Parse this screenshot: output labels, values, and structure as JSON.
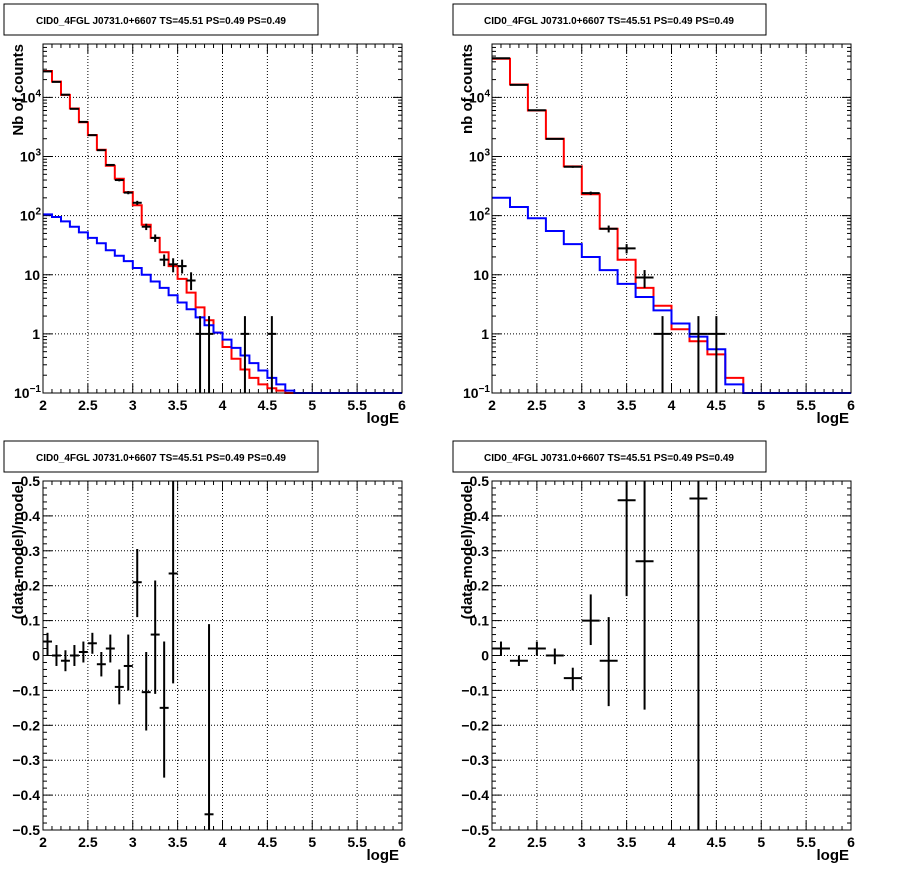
{
  "chart_data": [
    {
      "id": "top-left",
      "type": "step-histogram",
      "title": "CID0_4FGL J0731.0+6607 TS=45.51 PS=0.49 PS=0.49",
      "xlabel": "logE",
      "ylabel": "Nb of counts",
      "scale_y": "log",
      "xlim": [
        2,
        6
      ],
      "ylim": [
        0.1,
        80000
      ],
      "grid": true,
      "x_ticks": [
        "2",
        "2.5",
        "3",
        "3.5",
        "4",
        "4.5",
        "5",
        "5.5",
        "6"
      ],
      "y_ticks": [
        {
          "v": 0.1,
          "label": "10",
          "sup": "−1"
        },
        {
          "v": 1,
          "label": "1",
          "sup": ""
        },
        {
          "v": 10,
          "label": "10",
          "sup": ""
        },
        {
          "v": 100,
          "label": "10",
          "sup": "2"
        },
        {
          "v": 1000,
          "label": "10",
          "sup": "3"
        },
        {
          "v": 10000,
          "label": "10",
          "sup": "4"
        }
      ],
      "bin_edges": [
        2.0,
        2.1,
        2.2,
        2.3,
        2.4,
        2.5,
        2.6,
        2.7,
        2.8,
        2.9,
        3.0,
        3.1,
        3.2,
        3.3,
        3.4,
        3.5,
        3.6,
        3.7,
        3.8,
        3.9,
        4.0,
        4.1,
        4.2,
        4.3,
        4.4,
        4.5,
        4.6,
        4.7,
        4.8,
        4.9,
        5.0,
        5.1,
        5.2,
        5.3,
        5.4,
        5.5,
        5.6,
        5.7,
        5.8,
        5.9,
        6.0
      ],
      "series": [
        {
          "kind": "step",
          "color": "#ff0000",
          "values": [
            28000,
            18500,
            11000,
            6500,
            3800,
            2300,
            1300,
            700,
            420,
            250,
            150,
            70,
            42,
            24,
            14,
            8.5,
            5,
            2.8,
            1.7,
            1.05,
            0.6,
            0.38,
            0.25,
            0.18,
            0.14,
            0.12,
            0.11,
            0.1,
            0.1,
            0.1,
            0.1,
            0.1,
            0.1,
            0.1,
            0.1,
            0.1,
            0.1,
            0.1,
            0.1,
            0.1
          ]
        },
        {
          "kind": "step",
          "color": "#0000ff",
          "values": [
            105,
            95,
            80,
            65,
            52,
            42,
            34,
            26,
            21,
            17,
            13,
            10,
            7.7,
            6,
            4.5,
            3.4,
            2.6,
            1.9,
            1.4,
            1.05,
            0.8,
            0.58,
            0.43,
            0.32,
            0.24,
            0.18,
            0.14,
            0.11,
            0.1,
            0.1,
            0.1,
            0.1,
            0.1,
            0.1,
            0.1,
            0.1,
            0.1,
            0.1,
            0.1,
            0.1
          ]
        },
        {
          "kind": "errorbars",
          "color": "#000000",
          "points": [
            {
              "x": 2.05,
              "y": 27500,
              "ylo": 27300,
              "yhi": 27700
            },
            {
              "x": 2.15,
              "y": 18300,
              "ylo": 18150,
              "yhi": 18450
            },
            {
              "x": 2.25,
              "y": 11100,
              "ylo": 11000,
              "yhi": 11200
            },
            {
              "x": 2.35,
              "y": 6400,
              "ylo": 6320,
              "yhi": 6480
            },
            {
              "x": 2.45,
              "y": 3850,
              "ylo": 3790,
              "yhi": 3910
            },
            {
              "x": 2.55,
              "y": 2300,
              "ylo": 2250,
              "yhi": 2350
            },
            {
              "x": 2.65,
              "y": 1280,
              "ylo": 1245,
              "yhi": 1315
            },
            {
              "x": 2.75,
              "y": 720,
              "ylo": 695,
              "yhi": 745
            },
            {
              "x": 2.85,
              "y": 400,
              "ylo": 380,
              "yhi": 420
            },
            {
              "x": 2.95,
              "y": 245,
              "ylo": 230,
              "yhi": 260
            },
            {
              "x": 3.05,
              "y": 165,
              "ylo": 152,
              "yhi": 178
            },
            {
              "x": 3.15,
              "y": 65,
              "ylo": 57,
              "yhi": 73
            },
            {
              "x": 3.25,
              "y": 42,
              "ylo": 36,
              "yhi": 48
            },
            {
              "x": 3.35,
              "y": 18,
              "ylo": 14,
              "yhi": 22
            },
            {
              "x": 3.45,
              "y": 15,
              "ylo": 11,
              "yhi": 19
            },
            {
              "x": 3.55,
              "y": 14,
              "ylo": 10.5,
              "yhi": 18
            },
            {
              "x": 3.65,
              "y": 8,
              "ylo": 5.5,
              "yhi": 11
            },
            {
              "x": 3.75,
              "y": 1,
              "ylo": 0.1,
              "yhi": 2
            },
            {
              "x": 3.85,
              "y": 1,
              "ylo": 0.1,
              "yhi": 2
            },
            {
              "x": 4.25,
              "y": 1,
              "ylo": 0.1,
              "yhi": 2
            },
            {
              "x": 4.55,
              "y": 1,
              "ylo": 0.1,
              "yhi": 2
            }
          ]
        }
      ]
    },
    {
      "id": "top-right",
      "type": "step-histogram",
      "title": "CID0_4FGL J0731.0+6607 TS=45.51 PS=0.49 PS=0.49",
      "xlabel": "logE",
      "ylabel": "nb of counts",
      "scale_y": "log",
      "xlim": [
        2,
        6
      ],
      "ylim": [
        0.1,
        80000
      ],
      "grid": true,
      "x_ticks": [
        "2",
        "2.5",
        "3",
        "3.5",
        "4",
        "4.5",
        "5",
        "5.5",
        "6"
      ],
      "y_ticks": [
        {
          "v": 0.1,
          "label": "10",
          "sup": "−1"
        },
        {
          "v": 1,
          "label": "1",
          "sup": ""
        },
        {
          "v": 10,
          "label": "10",
          "sup": ""
        },
        {
          "v": 100,
          "label": "10",
          "sup": "2"
        },
        {
          "v": 1000,
          "label": "10",
          "sup": "3"
        },
        {
          "v": 10000,
          "label": "10",
          "sup": "4"
        }
      ],
      "bin_edges": [
        2.0,
        2.2,
        2.4,
        2.6,
        2.8,
        3.0,
        3.2,
        3.4,
        3.6,
        3.8,
        4.0,
        4.2,
        4.4,
        4.6,
        4.8,
        5.0,
        5.2,
        5.4,
        5.6,
        5.8,
        6.0
      ],
      "series": [
        {
          "kind": "step",
          "color": "#ff0000",
          "values": [
            45000,
            16500,
            6000,
            2000,
            680,
            230,
            60,
            18,
            6,
            3,
            1.2,
            0.75,
            0.45,
            0.18,
            0.1,
            0.1,
            0.1,
            0.1,
            0.1,
            0.1
          ]
        },
        {
          "kind": "step",
          "color": "#0000ff",
          "values": [
            200,
            140,
            90,
            55,
            33,
            20,
            12,
            7,
            4.2,
            2.5,
            1.5,
            0.9,
            0.55,
            0.14,
            0.1,
            0.1,
            0.1,
            0.1,
            0.1,
            0.1
          ]
        },
        {
          "kind": "errorbars",
          "color": "#000000",
          "points": [
            {
              "x": 2.1,
              "y": 46000,
              "ylo": 45700,
              "yhi": 46300
            },
            {
              "x": 2.3,
              "y": 16300,
              "ylo": 16150,
              "yhi": 16450
            },
            {
              "x": 2.5,
              "y": 6050,
              "ylo": 5970,
              "yhi": 6130
            },
            {
              "x": 2.7,
              "y": 1990,
              "ylo": 1945,
              "yhi": 2035
            },
            {
              "x": 2.9,
              "y": 670,
              "ylo": 645,
              "yhi": 695
            },
            {
              "x": 3.1,
              "y": 240,
              "ylo": 225,
              "yhi": 255
            },
            {
              "x": 3.3,
              "y": 60,
              "ylo": 52,
              "yhi": 68
            },
            {
              "x": 3.5,
              "y": 28,
              "ylo": 23,
              "yhi": 33
            },
            {
              "x": 3.7,
              "y": 9,
              "ylo": 6,
              "yhi": 12
            },
            {
              "x": 3.9,
              "y": 1,
              "ylo": 0.1,
              "yhi": 2
            },
            {
              "x": 4.3,
              "y": 1,
              "ylo": 0.1,
              "yhi": 2
            },
            {
              "x": 4.5,
              "y": 1,
              "ylo": 0.1,
              "yhi": 2
            }
          ]
        }
      ]
    },
    {
      "id": "bottom-left",
      "type": "errorbar-scatter",
      "title": "CID0_4FGL J0731.0+6607 TS=45.51 PS=0.49 PS=0.49",
      "xlabel": "logE",
      "ylabel": "(data-model)/model",
      "scale_y": "linear",
      "xlim": [
        2,
        6
      ],
      "ylim": [
        -0.5,
        0.5
      ],
      "grid": true,
      "x_ticks": [
        "2",
        "2.5",
        "3",
        "3.5",
        "4",
        "4.5",
        "5",
        "5.5",
        "6"
      ],
      "y_ticks": [
        {
          "v": -0.5,
          "label": "−0.5",
          "sup": ""
        },
        {
          "v": -0.4,
          "label": "−0.4",
          "sup": ""
        },
        {
          "v": -0.3,
          "label": "−0.3",
          "sup": ""
        },
        {
          "v": -0.2,
          "label": "−0.2",
          "sup": ""
        },
        {
          "v": -0.1,
          "label": "−0.1",
          "sup": ""
        },
        {
          "v": 0,
          "label": "0",
          "sup": ""
        },
        {
          "v": 0.1,
          "label": "0.1",
          "sup": ""
        },
        {
          "v": 0.2,
          "label": "0.2",
          "sup": ""
        },
        {
          "v": 0.3,
          "label": "0.3",
          "sup": ""
        },
        {
          "v": 0.4,
          "label": "0.4",
          "sup": ""
        },
        {
          "v": 0.5,
          "label": "0.5",
          "sup": ""
        }
      ],
      "series": [
        {
          "kind": "errorbars",
          "color": "#000000",
          "xhalf": 0.05,
          "points": [
            {
              "x": 2.05,
              "y": 0.04,
              "ylo": 0.0,
              "yhi": 0.065
            },
            {
              "x": 2.15,
              "y": 0.0,
              "ylo": -0.03,
              "yhi": 0.03
            },
            {
              "x": 2.25,
              "y": -0.015,
              "ylo": -0.045,
              "yhi": 0.015
            },
            {
              "x": 2.35,
              "y": 0.0,
              "ylo": -0.03,
              "yhi": 0.03
            },
            {
              "x": 2.45,
              "y": 0.01,
              "ylo": -0.02,
              "yhi": 0.04
            },
            {
              "x": 2.55,
              "y": 0.035,
              "ylo": 0.005,
              "yhi": 0.065
            },
            {
              "x": 2.65,
              "y": -0.025,
              "ylo": -0.06,
              "yhi": 0.01
            },
            {
              "x": 2.75,
              "y": 0.02,
              "ylo": -0.02,
              "yhi": 0.06
            },
            {
              "x": 2.85,
              "y": -0.09,
              "ylo": -0.14,
              "yhi": -0.04
            },
            {
              "x": 2.95,
              "y": -0.03,
              "ylo": -0.1,
              "yhi": 0.06
            },
            {
              "x": 3.05,
              "y": 0.21,
              "ylo": 0.11,
              "yhi": 0.305
            },
            {
              "x": 3.15,
              "y": -0.105,
              "ylo": -0.215,
              "yhi": 0.01
            },
            {
              "x": 3.25,
              "y": 0.06,
              "ylo": -0.11,
              "yhi": 0.215
            },
            {
              "x": 3.35,
              "y": -0.15,
              "ylo": -0.35,
              "yhi": 0.04
            },
            {
              "x": 3.45,
              "y": 0.235,
              "ylo": -0.08,
              "yhi": 0.5
            },
            {
              "x": 3.85,
              "y": -0.455,
              "ylo": -0.5,
              "yhi": 0.09
            }
          ]
        }
      ]
    },
    {
      "id": "bottom-right",
      "type": "errorbar-scatter",
      "title": "CID0_4FGL J0731.0+6607 TS=45.51 PS=0.49 PS=0.49",
      "xlabel": "logE",
      "ylabel": "(data-model)/model",
      "scale_y": "linear",
      "xlim": [
        2,
        6
      ],
      "ylim": [
        -0.5,
        0.5
      ],
      "grid": true,
      "x_ticks": [
        "2",
        "2.5",
        "3",
        "3.5",
        "4",
        "4.5",
        "5",
        "5.5",
        "6"
      ],
      "y_ticks": [
        {
          "v": -0.5,
          "label": "−0.5",
          "sup": ""
        },
        {
          "v": -0.4,
          "label": "−0.4",
          "sup": ""
        },
        {
          "v": -0.3,
          "label": "−0.3",
          "sup": ""
        },
        {
          "v": -0.2,
          "label": "−0.2",
          "sup": ""
        },
        {
          "v": -0.1,
          "label": "−0.1",
          "sup": ""
        },
        {
          "v": 0,
          "label": "0",
          "sup": ""
        },
        {
          "v": 0.1,
          "label": "0.1",
          "sup": ""
        },
        {
          "v": 0.2,
          "label": "0.2",
          "sup": ""
        },
        {
          "v": 0.3,
          "label": "0.3",
          "sup": ""
        },
        {
          "v": 0.4,
          "label": "0.4",
          "sup": ""
        },
        {
          "v": 0.5,
          "label": "0.5",
          "sup": ""
        }
      ],
      "series": [
        {
          "kind": "errorbars",
          "color": "#000000",
          "xhalf": 0.1,
          "points": [
            {
              "x": 2.1,
              "y": 0.02,
              "ylo": 0.0,
              "yhi": 0.04
            },
            {
              "x": 2.3,
              "y": -0.015,
              "ylo": -0.03,
              "yhi": 0.0
            },
            {
              "x": 2.5,
              "y": 0.02,
              "ylo": 0.0,
              "yhi": 0.04
            },
            {
              "x": 2.7,
              "y": 0.0,
              "ylo": -0.025,
              "yhi": 0.02
            },
            {
              "x": 2.9,
              "y": -0.065,
              "ylo": -0.1,
              "yhi": -0.035
            },
            {
              "x": 3.1,
              "y": 0.1,
              "ylo": 0.03,
              "yhi": 0.175
            },
            {
              "x": 3.3,
              "y": -0.015,
              "ylo": -0.145,
              "yhi": 0.11
            },
            {
              "x": 3.5,
              "y": 0.445,
              "ylo": 0.17,
              "yhi": 0.5
            },
            {
              "x": 3.7,
              "y": 0.27,
              "ylo": -0.155,
              "yhi": 0.5
            },
            {
              "x": 4.3,
              "y": 0.45,
              "ylo": -0.5,
              "yhi": 0.5
            }
          ]
        }
      ]
    }
  ]
}
